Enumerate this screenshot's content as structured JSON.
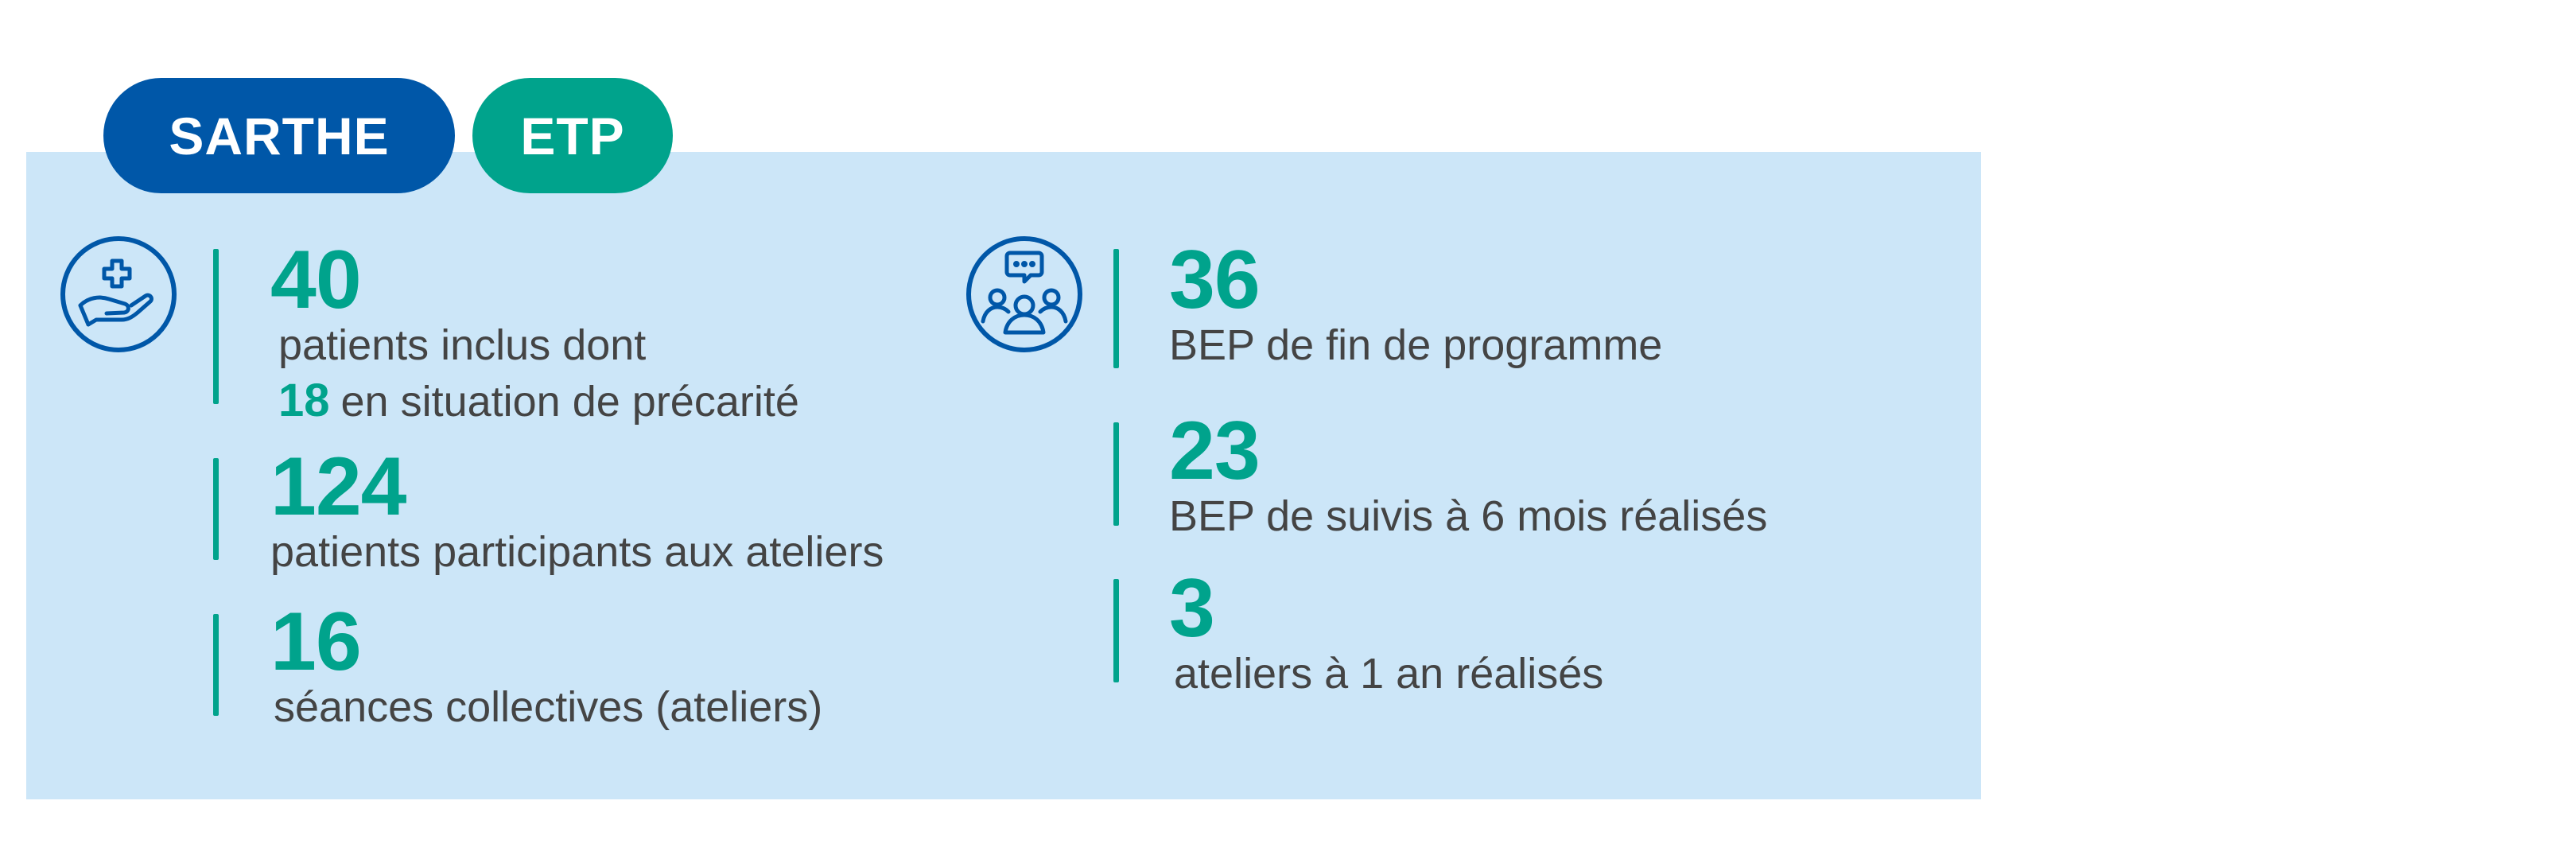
{
  "tags": {
    "region": "SARTHE",
    "program": "ETP"
  },
  "colors": {
    "panel_bg": "#cce6f8",
    "region_pill": "#0057a8",
    "program_pill": "#00a38c",
    "accent": "#00a38c",
    "text": "#444444",
    "icon_stroke": "#0057a8"
  },
  "icons": {
    "left": "hand-with-medical-cross-icon",
    "right": "group-discussion-icon"
  },
  "left_stats": [
    {
      "value": "40",
      "label": "patients inclus dont",
      "sub_value": "18",
      "sub_label": "en situation de précarité"
    },
    {
      "value": "124",
      "label": "patients participants aux ateliers"
    },
    {
      "value": "16",
      "label": "séances collectives (ateliers)"
    }
  ],
  "right_stats": [
    {
      "value": "36",
      "label": "BEP de fin de programme"
    },
    {
      "value": "23",
      "label": "BEP de suivis à 6 mois réalisés"
    },
    {
      "value": "3",
      "label": "ateliers à 1 an réalisés"
    }
  ]
}
